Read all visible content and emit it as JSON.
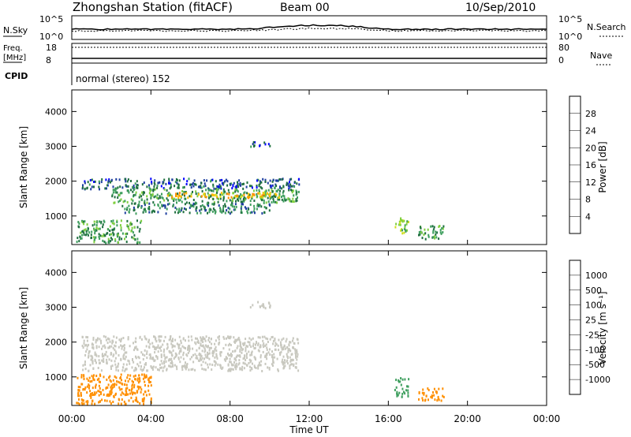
{
  "header": {
    "station": "Zhongshan Station (fitACF)",
    "beam": "Beam 00",
    "date": "10/Sep/2010"
  },
  "top_panels": {
    "nsky_label": "N.Sky",
    "nsky_ticks": [
      "10^5",
      "10^0"
    ],
    "nsearch_label": "N.Search",
    "nsearch_ticks": [
      "10^5",
      "10^0"
    ],
    "freq_label": "Freq.",
    "freq_unit": "[MHz]",
    "freq_ticks": [
      "18",
      "8"
    ],
    "nave_label": "Nave",
    "nave_ticks": [
      "80",
      "0"
    ],
    "cpid_label": "CPID",
    "cpid_value": "normal (stereo) 152"
  },
  "colorbars": {
    "power": {
      "label": "Power [dB]",
      "ticks": [
        "28",
        "24",
        "20",
        "16",
        "12",
        "8",
        "4"
      ],
      "colors": [
        "#0000ff",
        "#1f3fa0",
        "#1f6f3f",
        "#3f9f5f",
        "#7fcf3f",
        "#cfdf1f",
        "#ffbf00",
        "#ff8f00",
        "#ff4f00",
        "#ff0000"
      ]
    },
    "velocity": {
      "label": "Velocity [m s⁻¹]",
      "ticks": [
        "1000",
        "500",
        "100",
        "25",
        "-25",
        "-100",
        "-500",
        "-1000"
      ],
      "colors": [
        "#1f3fbf",
        "#2f7f8f",
        "#3f9f5f",
        "#7fcf3f",
        "#c8c8bf",
        "#c8c8bf",
        "#ffbf00",
        "#ff8f00",
        "#ff4f00",
        "#ff0000"
      ]
    }
  },
  "chart_data": [
    {
      "type": "heatmap",
      "title": "Zhongshan Station (fitACF)",
      "parameter": "Power",
      "xlabel": "",
      "ylabel": "Slant Range [km]",
      "x_tick_labels": [
        "00:00",
        "04:00",
        "08:00",
        "12:00",
        "16:00",
        "20:00",
        "00:00"
      ],
      "y_ticks": [
        1000,
        2000,
        3000,
        4000
      ],
      "xlim_hours": [
        0,
        24
      ],
      "ylim_km": [
        180,
        4620
      ],
      "colorbar_range_db": [
        0,
        30
      ],
      "regions": [
        {
          "t0": 0.5,
          "t1": 11.5,
          "r0": 1800,
          "r1": 2100,
          "value": 6
        },
        {
          "t0": 2.0,
          "t1": 11.5,
          "r0": 1400,
          "r1": 1800,
          "value": 10
        },
        {
          "t0": 4.8,
          "t1": 10.5,
          "r0": 1550,
          "r1": 1700,
          "value": 20
        },
        {
          "t0": 2.5,
          "t1": 10.0,
          "r0": 1100,
          "r1": 1400,
          "value": 8
        },
        {
          "t0": 0.2,
          "t1": 3.5,
          "r0": 250,
          "r1": 900,
          "value": 10
        },
        {
          "t0": 9.0,
          "t1": 10.0,
          "r0": 3000,
          "r1": 3150,
          "value": 6
        },
        {
          "t0": 16.3,
          "t1": 17.0,
          "r0": 500,
          "r1": 1000,
          "value": 14
        },
        {
          "t0": 17.5,
          "t1": 18.8,
          "r0": 350,
          "r1": 750,
          "value": 10
        }
      ]
    },
    {
      "type": "heatmap",
      "parameter": "Velocity",
      "xlabel": "Time UT",
      "ylabel": "Slant Range [km]",
      "x_tick_labels": [
        "00:00",
        "04:00",
        "08:00",
        "12:00",
        "16:00",
        "20:00",
        "00:00"
      ],
      "y_ticks": [
        1000,
        2000,
        3000,
        4000
      ],
      "xlim_hours": [
        0,
        24
      ],
      "ylim_km": [
        180,
        4620
      ],
      "regions": [
        {
          "t0": 0.5,
          "t1": 11.5,
          "r0": 1200,
          "r1": 2200,
          "value": 0
        },
        {
          "t0": 0.2,
          "t1": 4.0,
          "r0": 250,
          "r1": 1100,
          "value": -250
        },
        {
          "t0": 9.0,
          "t1": 10.0,
          "r0": 3000,
          "r1": 3200,
          "value": 0
        },
        {
          "t0": 16.3,
          "t1": 17.0,
          "r0": 450,
          "r1": 1000,
          "value": 300
        },
        {
          "t0": 17.5,
          "t1": 18.8,
          "r0": 350,
          "r1": 700,
          "value": -250
        }
      ]
    }
  ]
}
